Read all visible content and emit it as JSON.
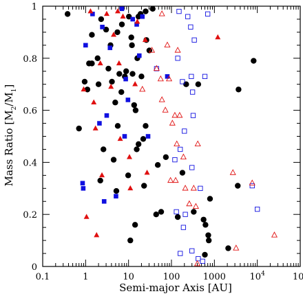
{
  "chart_data": {
    "type": "scatter",
    "xscale": "log",
    "xlim": [
      0.1,
      100000
    ],
    "ylim": [
      0,
      1
    ],
    "xlabel": "Semi-major Axis [AU]",
    "ylabel": {
      "prefix": "Mass Ratio [M",
      "sub1": "2",
      "mid": "/M",
      "sub2": "1",
      "suffix": "]"
    },
    "x_ticks": [
      {
        "value": 0.1,
        "base": "0.1",
        "exp": ""
      },
      {
        "value": 1,
        "base": "1",
        "exp": ""
      },
      {
        "value": 10,
        "base": "10",
        "exp": ""
      },
      {
        "value": 100,
        "base": "100",
        "exp": ""
      },
      {
        "value": 1000,
        "base": "1000",
        "exp": ""
      },
      {
        "value": 10000,
        "base": "10",
        "exp": "4"
      },
      {
        "value": 100000,
        "base": "10",
        "exp": "5"
      }
    ],
    "y_ticks": [
      "0",
      "0.2",
      "0.4",
      "0.6",
      "0.8",
      "1"
    ],
    "y_tick_values": [
      0,
      0.2,
      0.4,
      0.6,
      0.8,
      1
    ],
    "grid": false,
    "colors": {
      "black": "#000000",
      "red": "#e01010",
      "blue": "#1010e0"
    },
    "series": [
      {
        "marker": "circle-filled",
        "color": "#000000",
        "points": [
          [
            0.38,
            0.97
          ],
          [
            0.7,
            0.53
          ],
          [
            0.95,
            0.71
          ],
          [
            1.1,
            0.68
          ],
          [
            1.2,
            0.78
          ],
          [
            1.4,
            0.89
          ],
          [
            1.9,
            0.8
          ],
          [
            2.0,
            0.7
          ],
          [
            2.3,
            0.95
          ],
          [
            3.0,
            0.91
          ],
          [
            3.4,
            0.76
          ],
          [
            4.1,
            0.71
          ],
          [
            4.5,
            0.41
          ],
          [
            4.9,
            0.63
          ],
          [
            5.2,
            0.29
          ],
          [
            5.6,
            0.54
          ],
          [
            6.1,
            0.74
          ],
          [
            6.8,
            0.67
          ],
          [
            8.2,
            0.73
          ],
          [
            8.8,
            0.75
          ],
          [
            10.2,
            0.96
          ],
          [
            11.6,
            0.88
          ],
          [
            12.4,
            0.74
          ],
          [
            13.5,
            0.62
          ],
          [
            14.6,
            0.6
          ],
          [
            14.2,
            0.16
          ],
          [
            15.5,
            0.45
          ],
          [
            17.1,
            0.47
          ],
          [
            17.0,
            0.96
          ],
          [
            19.0,
            0.97
          ],
          [
            22.0,
            0.49
          ],
          [
            25.0,
            0.98
          ],
          [
            26.0,
            0.87
          ],
          [
            30.5,
            0.83
          ],
          [
            36.5,
            0.99
          ],
          [
            44.0,
            0.2
          ],
          [
            48.0,
            0.39
          ],
          [
            57.5,
            0.21
          ],
          [
            74.0,
            0.42
          ],
          [
            140.0,
            0.19
          ],
          [
            180.0,
            0.36
          ],
          [
            220.0,
            0.7
          ],
          [
            330.0,
            0.21
          ],
          [
            420.0,
            0.7
          ],
          [
            560.0,
            0.18
          ],
          [
            620.0,
            0.16
          ],
          [
            720.0,
            0.12
          ],
          [
            740.0,
            0.1
          ],
          [
            790.0,
            0.26
          ],
          [
            2100.0,
            0.07
          ],
          [
            3500.0,
            0.31
          ],
          [
            3650.0,
            0.68
          ],
          [
            8200.0,
            0.79
          ],
          [
            2.6,
            0.45
          ],
          [
            9.8,
            0.35
          ],
          [
            3.8,
            0.85
          ],
          [
            25.0,
            0.54
          ],
          [
            5.5,
            0.9
          ],
          [
            23.0,
            0.31
          ],
          [
            11.0,
            0.1
          ],
          [
            600.0,
            0.045
          ],
          [
            1.4,
            0.78
          ],
          [
            2.2,
            0.33
          ],
          [
            7.0,
            0.93
          ],
          [
            16.0,
            0.8
          ],
          [
            12.0,
            0.85
          ],
          [
            20.0,
            0.73
          ]
        ]
      },
      {
        "marker": "square-filled",
        "color": "#1010e0",
        "points": [
          [
            0.88,
            0.3
          ],
          [
            1.0,
            0.85
          ],
          [
            1.45,
            0.97
          ],
          [
            2.1,
            0.55
          ],
          [
            2.45,
            0.92
          ],
          [
            2.7,
            0.25
          ],
          [
            3.1,
            0.58
          ],
          [
            3.7,
            0.84
          ],
          [
            5.1,
            0.27
          ],
          [
            7.0,
            0.99
          ],
          [
            8.1,
            0.5
          ],
          [
            8.6,
            0.72
          ],
          [
            9.7,
            0.64
          ],
          [
            15.5,
            0.93
          ],
          [
            17.8,
            0.81
          ],
          [
            21.0,
            0.96
          ],
          [
            28.5,
            0.5
          ],
          [
            80.0,
            0.73
          ],
          [
            0.85,
            0.32
          ],
          [
            12.5,
            0.95
          ]
        ]
      },
      {
        "marker": "triangle-filled",
        "color": "#e01010",
        "points": [
          [
            0.9,
            0.68
          ],
          [
            1.05,
            0.19
          ],
          [
            1.3,
            0.98
          ],
          [
            1.55,
            0.63
          ],
          [
            1.7,
            0.53
          ],
          [
            1.8,
            0.12
          ],
          [
            2.4,
            0.35
          ],
          [
            3.1,
            0.97
          ],
          [
            3.9,
            0.69
          ],
          [
            4.5,
            0.89
          ],
          [
            5.6,
            0.98
          ],
          [
            6.4,
            0.49
          ],
          [
            7.4,
            0.96
          ],
          [
            10.5,
            0.42
          ],
          [
            11.0,
            0.3
          ],
          [
            14.2,
            0.7
          ],
          [
            16.0,
            0.94
          ],
          [
            24.5,
            0.87
          ],
          [
            27.0,
            0.36
          ],
          [
            1200.0,
            0.88
          ],
          [
            6.0,
            0.78
          ],
          [
            2.2,
            0.78
          ]
        ]
      },
      {
        "marker": "square-open",
        "color": "#1010e0",
        "points": [
          [
            160.0,
            0.05
          ],
          [
            190.0,
            0.15
          ],
          [
            210.0,
            0.2
          ],
          [
            240.0,
            0.96
          ],
          [
            280.0,
            0.92
          ],
          [
            290.0,
            0.73
          ],
          [
            310.0,
            0.67
          ],
          [
            320.0,
            0.58
          ],
          [
            340.0,
            0.87
          ],
          [
            420.0,
            0.03
          ],
          [
            470.0,
            0.3
          ],
          [
            530.0,
            0.02
          ],
          [
            600.0,
            0.73
          ],
          [
            700.0,
            0.97
          ],
          [
            7600.0,
            0.31
          ],
          [
            10000.0,
            0.22
          ],
          [
            300.0,
            0.06
          ],
          [
            130.0,
            0.21
          ],
          [
            45.0,
            0.76
          ],
          [
            180.0,
            0.71
          ],
          [
            150.0,
            0.98
          ],
          [
            200.0,
            0.52
          ],
          [
            160.0,
            0.45
          ],
          [
            300.0,
            0.38
          ],
          [
            120.0,
            0.41
          ],
          [
            140.0,
            0.8
          ]
        ]
      },
      {
        "marker": "triangle-open",
        "color": "#e01010",
        "points": [
          [
            45.0,
            0.76
          ],
          [
            60.0,
            0.64
          ],
          [
            72.0,
            0.6
          ],
          [
            80.0,
            0.85
          ],
          [
            88.0,
            0.72
          ],
          [
            105.0,
            0.55
          ],
          [
            125.0,
            0.33
          ],
          [
            133.0,
            0.47
          ],
          [
            155.0,
            0.58
          ],
          [
            190.0,
            0.42
          ],
          [
            210.0,
            0.3
          ],
          [
            260.0,
            0.24
          ],
          [
            330.0,
            0.3
          ],
          [
            370.0,
            0.23
          ],
          [
            410.0,
            0.47
          ],
          [
            2700.0,
            0.36
          ],
          [
            3200.0,
            0.07
          ],
          [
            7600.0,
            0.32
          ],
          [
            25000.0,
            0.12
          ],
          [
            400.0,
            0.01
          ],
          [
            56.0,
            0.72
          ],
          [
            21.0,
            0.68
          ],
          [
            120.0,
            0.58
          ],
          [
            95.0,
            0.33
          ],
          [
            60.0,
            0.97
          ],
          [
            140.0,
            0.83
          ],
          [
            35.0,
            0.83
          ]
        ]
      }
    ]
  }
}
